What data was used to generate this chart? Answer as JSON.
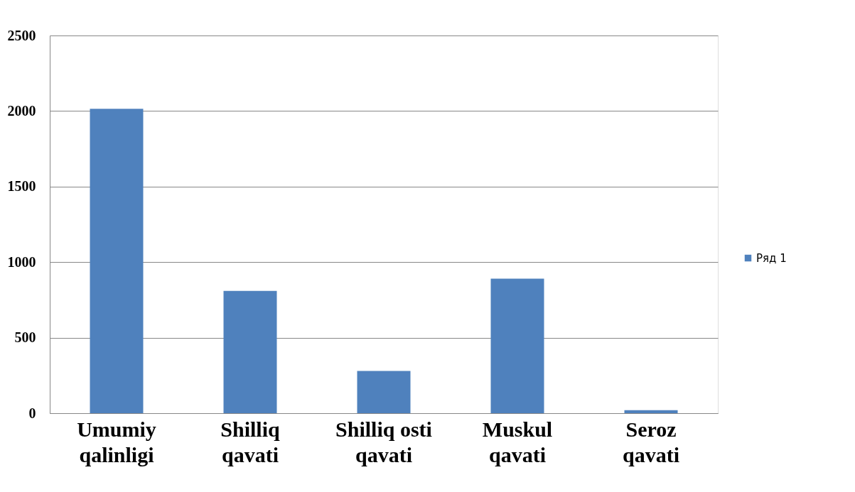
{
  "chart_data": {
    "type": "bar",
    "categories": [
      "Umumiy qalinligi",
      "Shilliq qavati",
      "Shilliq osti qavati",
      "Muskul qavati",
      "Seroz qavati"
    ],
    "series": [
      {
        "name": "Ряд 1",
        "color": "#4f81bd",
        "values": [
          2015,
          810,
          280,
          890,
          20
        ]
      }
    ],
    "ylim": [
      0,
      2500
    ],
    "yticks": [
      0,
      500,
      1000,
      1500,
      2000,
      2500
    ],
    "grid": "y",
    "legend": "right"
  }
}
